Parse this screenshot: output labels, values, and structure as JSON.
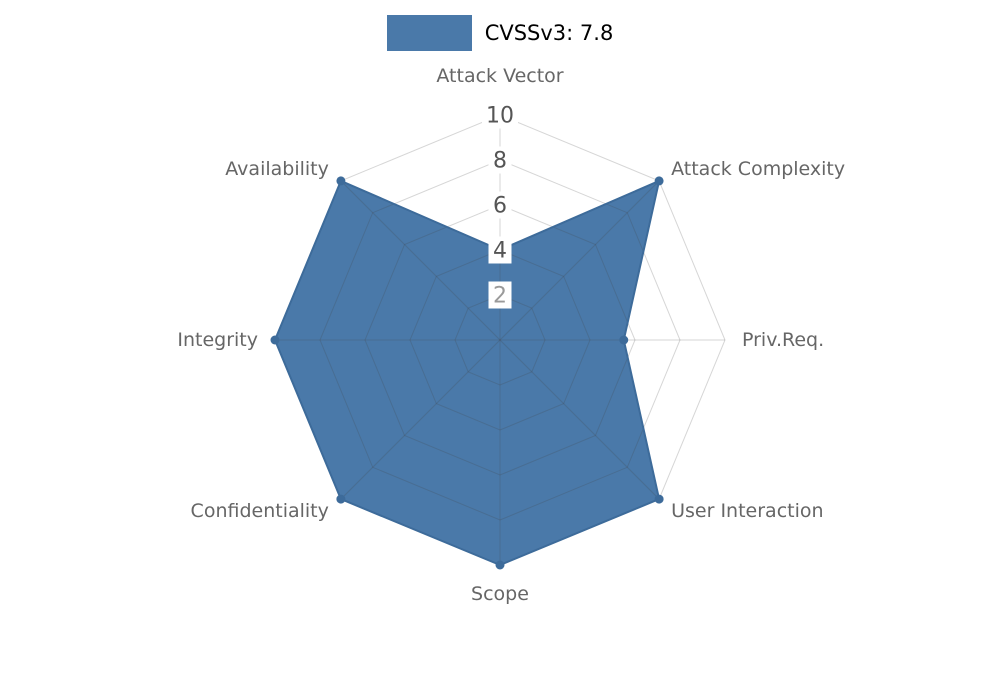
{
  "legend": {
    "label": "CVSSv3: 7.8",
    "swatch_color": "#4a79a9"
  },
  "chart_data": {
    "type": "radar",
    "categories": [
      "Attack Vector",
      "Attack Complexity",
      "Priv.Req.",
      "User Interaction",
      "Scope",
      "Confidentiality",
      "Integrity",
      "Availability"
    ],
    "series": [
      {
        "name": "CVSSv3: 7.8",
        "values": [
          4,
          10,
          5.5,
          10,
          10,
          10,
          10,
          10
        ]
      }
    ],
    "radial_ticks": [
      2,
      4,
      6,
      8,
      10
    ],
    "rmax": 10,
    "angle_start": "top",
    "direction": "clockwise",
    "grid": true,
    "legend_position": "top-center",
    "fill_color": "#4a79a9",
    "stroke_color": "#3d6b9a",
    "grid_line_color": "rgba(70,70,70,0.22)",
    "axis_label_color": "#666666",
    "tick_color": "#555555",
    "tick_muted_value": "2",
    "tick_muted_color": "#9a9a9a",
    "tick_box_color": "#ffffff"
  }
}
